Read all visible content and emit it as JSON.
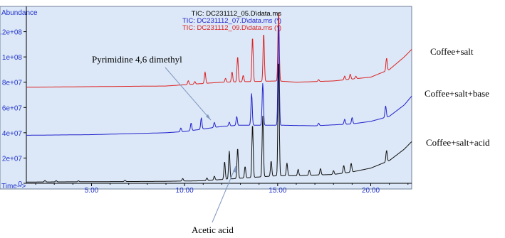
{
  "chart_data": {
    "type": "line",
    "y_axis_title": "Abundance",
    "x_axis_title": "Time-->",
    "xlim": [
      1.5,
      22.2
    ],
    "ylim": [
      0,
      140000000
    ],
    "x_ticks": [
      {
        "value": 5,
        "label": "5.00"
      },
      {
        "value": 10,
        "label": "10.00"
      },
      {
        "value": 15,
        "label": "15.00"
      },
      {
        "value": 20,
        "label": "20.00"
      }
    ],
    "y_ticks": [
      {
        "value": 0,
        "label": "0"
      },
      {
        "value": 20000000,
        "label": "2e+07"
      },
      {
        "value": 40000000,
        "label": "4e+07"
      },
      {
        "value": 60000000,
        "label": "6e+07"
      },
      {
        "value": 80000000,
        "label": "8e+07"
      },
      {
        "value": 100000000,
        "label": "1e+08"
      },
      {
        "value": 120000000,
        "label": "1.2e+08"
      }
    ],
    "file_labels": [
      {
        "text": "TIC: DC231112_05.D\\data.ms",
        "color": "#000000"
      },
      {
        "text": "TIC: DC231112_07.D\\data.ms (*)",
        "color": "#2222cc"
      },
      {
        "text": "TIC: DC231112_09.D\\data.ms (*)",
        "color": "#dd2222"
      }
    ],
    "series": [
      {
        "name": "Coffee+salt",
        "color": "#dd2222",
        "baseline": [
          [
            1.5,
            76000000
          ],
          [
            5,
            76500000
          ],
          [
            9,
            77000000
          ],
          [
            10,
            78000000
          ],
          [
            12,
            80000000
          ],
          [
            15,
            81000000
          ],
          [
            16,
            80000000
          ],
          [
            18,
            81000000
          ],
          [
            20,
            84000000
          ],
          [
            21,
            90000000
          ],
          [
            21.8,
            100000000
          ],
          [
            22.2,
            106000000
          ]
        ],
        "peaks": [
          [
            10.2,
            3000000
          ],
          [
            10.55,
            2000000
          ],
          [
            11.1,
            9000000
          ],
          [
            12.2,
            3000000
          ],
          [
            12.55,
            8000000
          ],
          [
            12.85,
            20000000
          ],
          [
            13.15,
            5000000
          ],
          [
            13.65,
            35000000
          ],
          [
            14.25,
            38000000
          ],
          [
            15.05,
            56000000
          ],
          [
            17.2,
            1500000
          ],
          [
            18.6,
            3000000
          ],
          [
            18.9,
            4000000
          ],
          [
            19.2,
            2000000
          ],
          [
            20.85,
            10000000
          ]
        ]
      },
      {
        "name": "Coffee+salt+base",
        "color": "#2222cc",
        "baseline": [
          [
            1.5,
            38000000
          ],
          [
            5,
            38500000
          ],
          [
            9,
            40000000
          ],
          [
            10,
            41000000
          ],
          [
            11,
            43000000
          ],
          [
            12,
            45000000
          ],
          [
            13,
            46000000
          ],
          [
            15,
            46000000
          ],
          [
            17,
            45500000
          ],
          [
            19,
            47000000
          ],
          [
            20,
            49000000
          ],
          [
            21,
            53000000
          ],
          [
            21.8,
            62000000
          ],
          [
            22.2,
            69000000
          ]
        ],
        "peaks": [
          [
            9.8,
            3000000
          ],
          [
            10.35,
            6000000
          ],
          [
            10.9,
            9000000
          ],
          [
            11.6,
            4000000
          ],
          [
            12.4,
            3000000
          ],
          [
            12.8,
            7000000
          ],
          [
            13.6,
            25000000
          ],
          [
            14.2,
            33000000
          ],
          [
            15.05,
            82000000
          ],
          [
            17.2,
            2000000
          ],
          [
            18.6,
            4000000
          ],
          [
            19.0,
            5000000
          ],
          [
            20.8,
            9000000
          ]
        ]
      },
      {
        "name": "Coffee+salt+acid",
        "color": "#111111",
        "baseline": [
          [
            1.5,
            1000000
          ],
          [
            8.5,
            1500000
          ],
          [
            11,
            2000000
          ],
          [
            12,
            3000000
          ],
          [
            14,
            5000000
          ],
          [
            15,
            6000000
          ],
          [
            16,
            6000000
          ],
          [
            18,
            7000000
          ],
          [
            19,
            9000000
          ],
          [
            20,
            12000000
          ],
          [
            21,
            18000000
          ],
          [
            21.8,
            27000000
          ],
          [
            22.2,
            33000000
          ]
        ],
        "peaks": [
          [
            2.5,
            1200000
          ],
          [
            3.1,
            1000000
          ],
          [
            4.3,
            800000
          ],
          [
            6.8,
            1000000
          ],
          [
            9.9,
            2000000
          ],
          [
            11.2,
            2000000
          ],
          [
            11.6,
            3000000
          ],
          [
            12.15,
            14000000
          ],
          [
            12.4,
            22000000
          ],
          [
            12.85,
            24000000
          ],
          [
            13.25,
            9000000
          ],
          [
            13.65,
            42000000
          ],
          [
            14.2,
            48000000
          ],
          [
            14.65,
            12000000
          ],
          [
            15.05,
            92000000
          ],
          [
            15.5,
            10000000
          ],
          [
            16.1,
            5000000
          ],
          [
            16.7,
            4000000
          ],
          [
            17.3,
            5000000
          ],
          [
            18.0,
            3000000
          ],
          [
            18.55,
            6000000
          ],
          [
            18.95,
            7000000
          ],
          [
            20.85,
            9000000
          ]
        ]
      }
    ],
    "annotations": [
      {
        "text": "Pyrimidine 4,6 dimethyl",
        "points_to": {
          "x": 10.9,
          "series": "Coffee+salt+base"
        }
      },
      {
        "text": "Acetic acid",
        "points_to": {
          "x": 12.2,
          "series": "Coffee+salt+acid"
        }
      }
    ]
  }
}
